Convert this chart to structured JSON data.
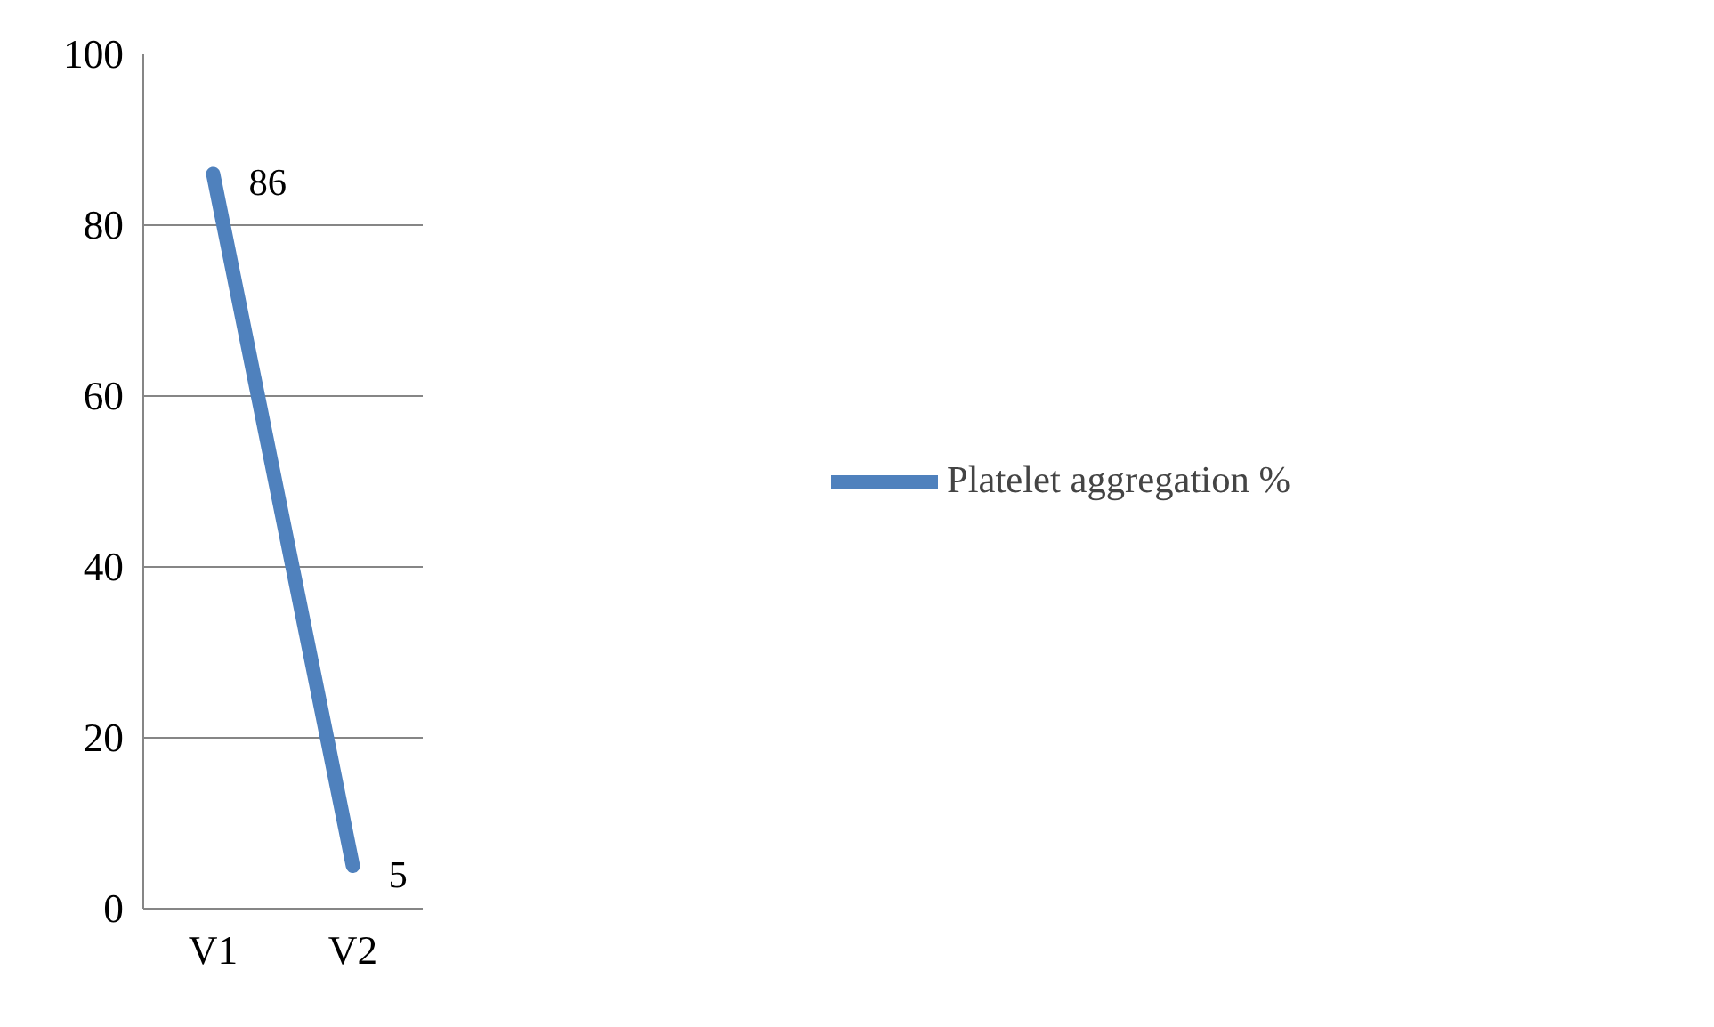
{
  "chart_data": {
    "type": "line",
    "categories": [
      "V1",
      "V2"
    ],
    "series": [
      {
        "name": "Platelet aggregation %",
        "color": "#4f81bd",
        "values": [
          86,
          5
        ]
      }
    ],
    "ylim": [
      0,
      100
    ],
    "yticks": [
      0,
      20,
      40,
      60,
      80,
      100
    ],
    "grid": "y",
    "legend": "right",
    "data_labels": true,
    "marker": "none",
    "line_style": "solid"
  }
}
